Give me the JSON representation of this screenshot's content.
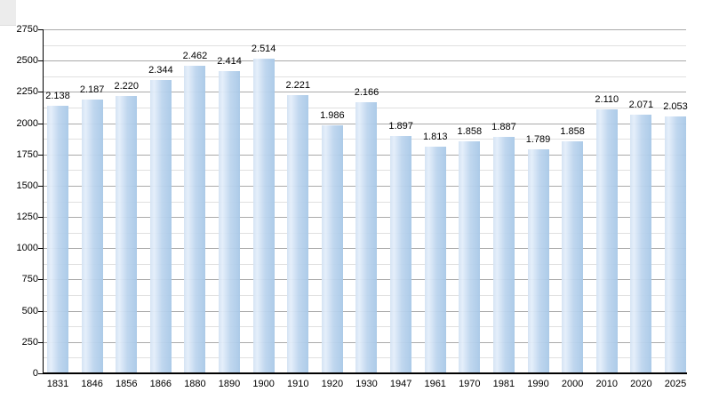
{
  "chart_data": {
    "type": "bar",
    "title": "",
    "xlabel": "",
    "ylabel": "",
    "categories": [
      "1831",
      "1846",
      "1856",
      "1866",
      "1880",
      "1890",
      "1900",
      "1910",
      "1920",
      "1930",
      "1947",
      "1961",
      "1970",
      "1981",
      "1990",
      "2000",
      "2010",
      "2020",
      "2025"
    ],
    "values": [
      2138,
      2187,
      2220,
      2344,
      2462,
      2414,
      2514,
      2221,
      1986,
      2166,
      1897,
      1813,
      1858,
      1887,
      1789,
      1858,
      2110,
      2071,
      2053
    ],
    "value_labels": [
      "2.138",
      "2.187",
      "2.220",
      "2.344",
      "2.462",
      "2.414",
      "2.514",
      "2.221",
      "1.986",
      "2.166",
      "1.897",
      "1.813",
      "1.858",
      "1.887",
      "1.789",
      "1.858",
      "2.110",
      "2.071",
      "2.053"
    ],
    "ylim": [
      0,
      2750
    ],
    "y_ticks": [
      0,
      250,
      500,
      750,
      1000,
      1250,
      1500,
      1750,
      2000,
      2250,
      2500,
      2750
    ],
    "y_tick_labels": [
      "0",
      "250",
      "500",
      "750",
      "1000",
      "1250",
      "1500",
      "1750",
      "2000",
      "2250",
      "2500",
      "2750"
    ],
    "minor_grid_step": 125,
    "grid": true,
    "legend": false,
    "bar_color": "#b3cfe9",
    "bar_gradient_light": "#e4eefa",
    "bar_gradient_dark": "#a8c8e7",
    "grid_major_color": "#aaaaaa",
    "grid_minor_color": "#e0e0e0",
    "axis_color": "#000000",
    "text_color": "#000000",
    "background": "#ffffff"
  }
}
